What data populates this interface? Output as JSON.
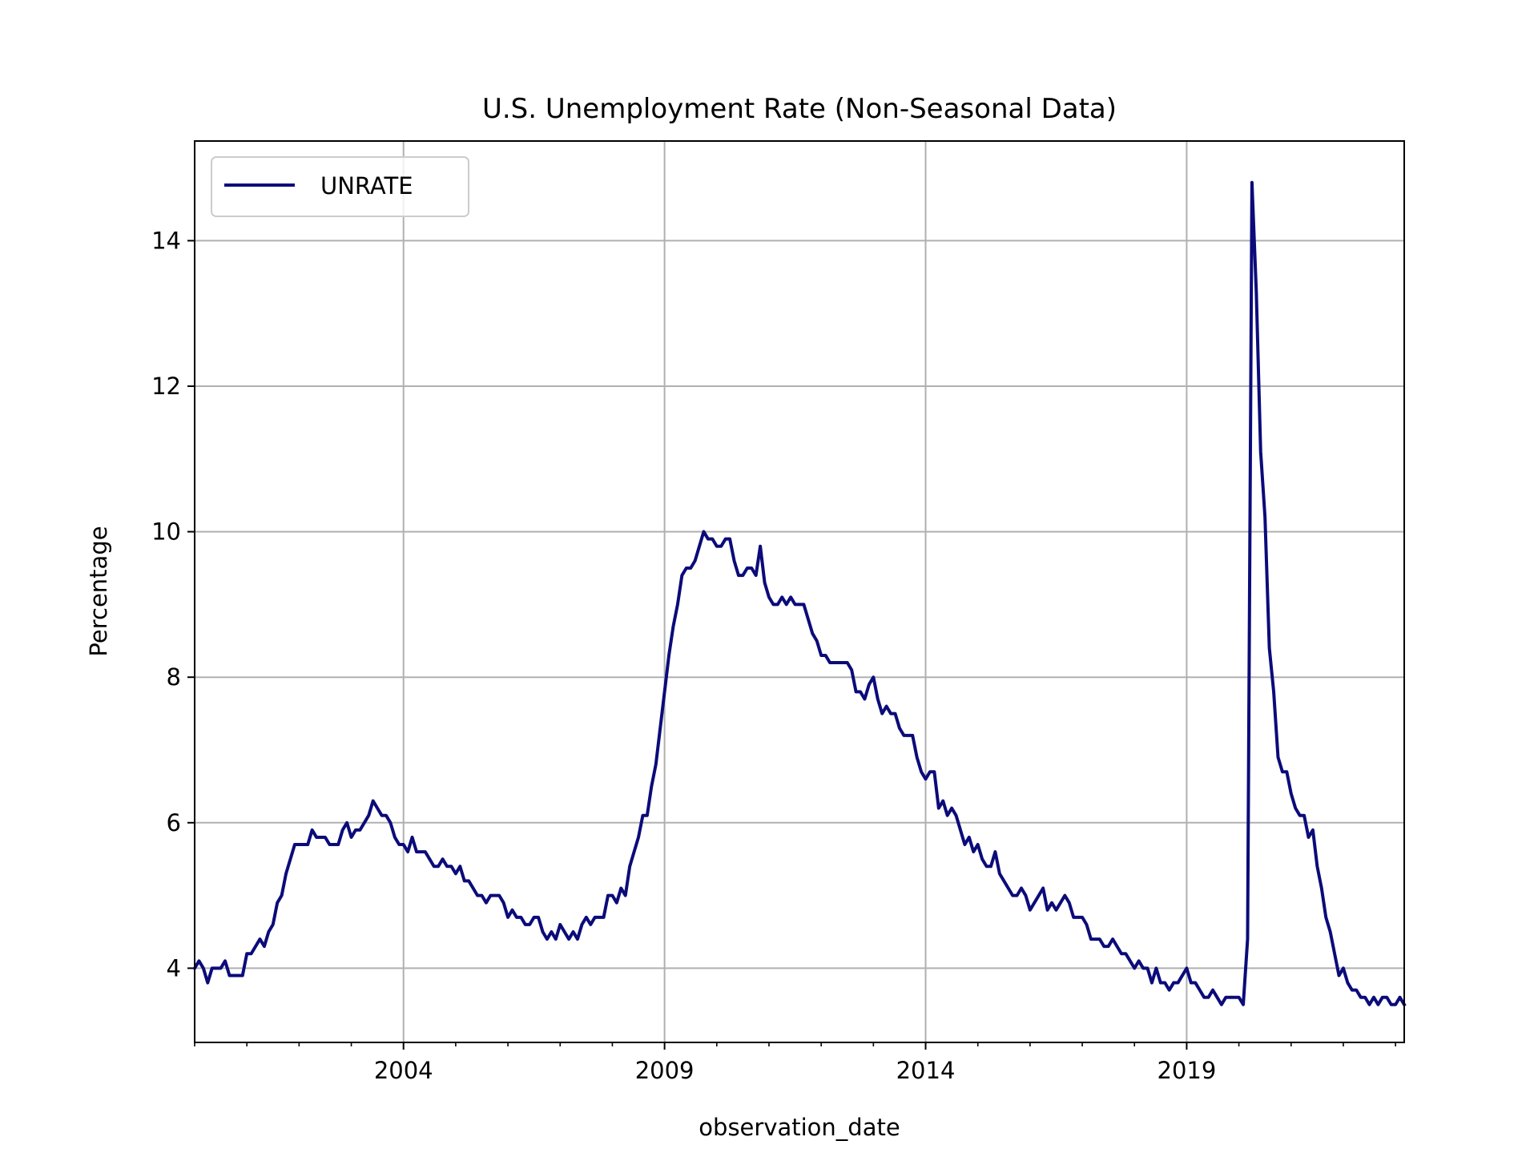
{
  "chart_data": {
    "type": "line",
    "title": "U.S. Unemployment Rate (Non-Seasonal Data)",
    "xlabel": "observation_date",
    "ylabel": "Percentage",
    "x_range": [
      "2000-01",
      "2023-03"
    ],
    "ylim": [
      2.98,
      15.37
    ],
    "x_ticks": [
      {
        "label": "2004",
        "date": "2004-01"
      },
      {
        "label": "2009",
        "date": "2009-01"
      },
      {
        "label": "2014",
        "date": "2014-01"
      },
      {
        "label": "2019",
        "date": "2019-01"
      }
    ],
    "y_ticks": [
      {
        "label": "4",
        "value": 4
      },
      {
        "label": "6",
        "value": 6
      },
      {
        "label": "8",
        "value": 8
      },
      {
        "label": "10",
        "value": 10
      },
      {
        "label": "12",
        "value": 12
      },
      {
        "label": "14",
        "value": 14
      }
    ],
    "grid": true,
    "legend_position": "upper-left",
    "line_color": "#0b0b7a",
    "x_start": "2000-01",
    "x_frequency": "monthly",
    "series": [
      {
        "name": "UNRATE",
        "values": [
          4.0,
          4.1,
          4.0,
          3.8,
          4.0,
          4.0,
          4.0,
          4.1,
          3.9,
          3.9,
          3.9,
          3.9,
          4.2,
          4.2,
          4.3,
          4.4,
          4.3,
          4.5,
          4.6,
          4.9,
          5.0,
          5.3,
          5.5,
          5.7,
          5.7,
          5.7,
          5.7,
          5.9,
          5.8,
          5.8,
          5.8,
          5.7,
          5.7,
          5.7,
          5.9,
          6.0,
          5.8,
          5.9,
          5.9,
          6.0,
          6.1,
          6.3,
          6.2,
          6.1,
          6.1,
          6.0,
          5.8,
          5.7,
          5.7,
          5.6,
          5.8,
          5.6,
          5.6,
          5.6,
          5.5,
          5.4,
          5.4,
          5.5,
          5.4,
          5.4,
          5.3,
          5.4,
          5.2,
          5.2,
          5.1,
          5.0,
          5.0,
          4.9,
          5.0,
          5.0,
          5.0,
          4.9,
          4.7,
          4.8,
          4.7,
          4.7,
          4.6,
          4.6,
          4.7,
          4.7,
          4.5,
          4.4,
          4.5,
          4.4,
          4.6,
          4.5,
          4.4,
          4.5,
          4.4,
          4.6,
          4.7,
          4.6,
          4.7,
          4.7,
          4.7,
          5.0,
          5.0,
          4.9,
          5.1,
          5.0,
          5.4,
          5.6,
          5.8,
          6.1,
          6.1,
          6.5,
          6.8,
          7.3,
          7.8,
          8.3,
          8.7,
          9.0,
          9.4,
          9.5,
          9.5,
          9.6,
          9.8,
          10.0,
          9.9,
          9.9,
          9.8,
          9.8,
          9.9,
          9.9,
          9.6,
          9.4,
          9.4,
          9.5,
          9.5,
          9.4,
          9.8,
          9.3,
          9.1,
          9.0,
          9.0,
          9.1,
          9.0,
          9.1,
          9.0,
          9.0,
          9.0,
          8.8,
          8.6,
          8.5,
          8.3,
          8.3,
          8.2,
          8.2,
          8.2,
          8.2,
          8.2,
          8.1,
          7.8,
          7.8,
          7.7,
          7.9,
          8.0,
          7.7,
          7.5,
          7.6,
          7.5,
          7.5,
          7.3,
          7.2,
          7.2,
          7.2,
          6.9,
          6.7,
          6.6,
          6.7,
          6.7,
          6.2,
          6.3,
          6.1,
          6.2,
          6.1,
          5.9,
          5.7,
          5.8,
          5.6,
          5.7,
          5.5,
          5.4,
          5.4,
          5.6,
          5.3,
          5.2,
          5.1,
          5.0,
          5.0,
          5.1,
          5.0,
          4.8,
          4.9,
          5.0,
          5.1,
          4.8,
          4.9,
          4.8,
          4.9,
          5.0,
          4.9,
          4.7,
          4.7,
          4.7,
          4.6,
          4.4,
          4.4,
          4.4,
          4.3,
          4.3,
          4.4,
          4.3,
          4.2,
          4.2,
          4.1,
          4.0,
          4.1,
          4.0,
          4.0,
          3.8,
          4.0,
          3.8,
          3.8,
          3.7,
          3.8,
          3.8,
          3.9,
          4.0,
          3.8,
          3.8,
          3.7,
          3.6,
          3.6,
          3.7,
          3.6,
          3.5,
          3.6,
          3.6,
          3.6,
          3.6,
          3.5,
          4.4,
          14.8,
          13.3,
          11.1,
          10.2,
          8.4,
          7.8,
          6.9,
          6.7,
          6.7,
          6.4,
          6.2,
          6.1,
          6.1,
          5.8,
          5.9,
          5.4,
          5.1,
          4.7,
          4.5,
          4.2,
          3.9,
          4.0,
          3.8,
          3.7,
          3.7,
          3.6,
          3.6,
          3.5,
          3.6,
          3.5,
          3.6,
          3.6,
          3.5,
          3.5,
          3.6,
          3.5
        ]
      }
    ]
  }
}
